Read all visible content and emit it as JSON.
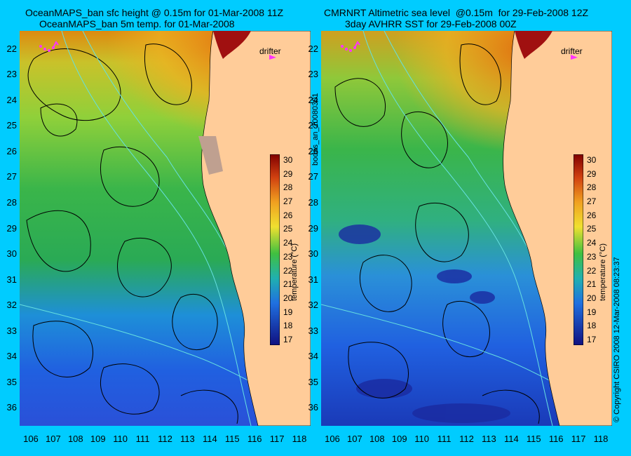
{
  "left_panel": {
    "title_line1": "OceanMAPS_ban sfc height @ 0.15m for 01-Mar-2008 11Z",
    "title_line2": "OceanMAPS_ban 5m temp. for 01-Mar-2008",
    "legend_label": "drifter",
    "colorbar_label": "temperature (°C)"
  },
  "right_panel": {
    "title_line1": "CMRNRT Altimetric sea level  @0.15m  for 29-Feb-2008 12Z",
    "title_line2": "3day AVHRR SST for 29-Feb-2008 00Z",
    "legend_label": "drifter",
    "colorbar_label": "temperature (°C)"
  },
  "map_data": {
    "latitude_ticks": [
      "22",
      "23",
      "24",
      "25",
      "26",
      "27",
      "28",
      "29",
      "30",
      "31",
      "32",
      "33",
      "34",
      "35",
      "36"
    ],
    "longitude_ticks": [
      "106",
      "107",
      "108",
      "109",
      "110",
      "111",
      "112",
      "113",
      "114",
      "115",
      "116",
      "117",
      "118"
    ],
    "lat_range": [
      21.3,
      36.7
    ],
    "lon_range": [
      105.5,
      118.5
    ],
    "colorbar_ticks": [
      "30",
      "29",
      "28",
      "27",
      "26",
      "25",
      "24",
      "23",
      "22",
      "21",
      "20",
      "19",
      "18",
      "17"
    ],
    "colorbar_range": [
      16.5,
      30.7
    ],
    "colors": {
      "background": "#00ccff",
      "land": "#ffcc99",
      "contour": "#000000",
      "bathymetry": "#66e0e0",
      "drifter": "#ff33ff"
    }
  },
  "side_labels": {
    "product_id": "bodas_an_20080301",
    "copyright": "© Copyright CSIRO 2008  12-Mar-2008 08:23:37"
  }
}
